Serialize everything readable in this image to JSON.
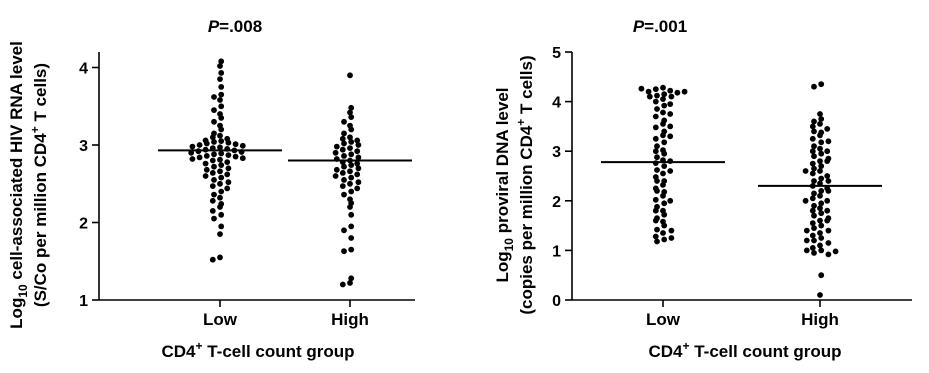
{
  "chart_data": [
    {
      "type": "scatter",
      "p_label": "P",
      "p_value": "=.008",
      "xlabel_main": "CD4",
      "xlabel_sup": "+",
      "xlabel_rest": " T-cell count group",
      "ylabel_line1": {
        "log": "Log",
        "sub": "10",
        "rest": " cell-associated HIV RNA level"
      },
      "ylabel_line2": {
        "pre": "(S/Co per million CD4",
        "sup": "+",
        "post": " T cells)"
      },
      "ylim": [
        1,
        4.2
      ],
      "yticks": [
        "1",
        "2",
        "3",
        "4"
      ],
      "categories": [
        "Low",
        "High"
      ],
      "series": [
        {
          "mean": 2.93,
          "values": [
            4.08,
            4.02,
            3.93,
            3.85,
            3.75,
            3.65,
            3.62,
            3.58,
            3.5,
            3.45,
            3.4,
            3.35,
            3.3,
            3.25,
            3.2,
            3.15,
            3.12,
            3.1,
            3.08,
            3.06,
            3.05,
            3.04,
            3.03,
            3.02,
            3.01,
            3.0,
            2.99,
            2.98,
            2.97,
            2.96,
            2.95,
            2.94,
            2.93,
            2.92,
            2.91,
            2.9,
            2.89,
            2.88,
            2.87,
            2.86,
            2.85,
            2.84,
            2.83,
            2.82,
            2.81,
            2.8,
            2.78,
            2.76,
            2.74,
            2.72,
            2.7,
            2.68,
            2.66,
            2.64,
            2.62,
            2.6,
            2.58,
            2.55,
            2.52,
            2.5,
            2.47,
            2.44,
            2.4,
            2.36,
            2.32,
            2.28,
            2.24,
            2.2,
            2.15,
            2.1,
            2.05,
            1.95,
            1.85,
            1.55,
            1.52
          ]
        },
        {
          "mean": 2.8,
          "values": [
            3.9,
            3.48,
            3.42,
            3.36,
            3.3,
            3.25,
            3.2,
            3.15,
            3.1,
            3.08,
            3.06,
            3.04,
            3.02,
            3.0,
            2.98,
            2.96,
            2.94,
            2.92,
            2.9,
            2.88,
            2.86,
            2.84,
            2.82,
            2.8,
            2.78,
            2.76,
            2.74,
            2.72,
            2.7,
            2.68,
            2.66,
            2.64,
            2.62,
            2.6,
            2.58,
            2.55,
            2.52,
            2.5,
            2.47,
            2.44,
            2.4,
            2.36,
            2.3,
            2.25,
            2.2,
            2.1,
            1.95,
            1.9,
            1.8,
            1.65,
            1.63,
            1.28,
            1.22,
            1.2
          ]
        }
      ]
    },
    {
      "type": "scatter",
      "p_label": "P",
      "p_value": "=.001",
      "xlabel_main": "CD4",
      "xlabel_sup": "+",
      "xlabel_rest": " T-cell count group",
      "ylabel_line1": {
        "log": "Log",
        "sub": "10",
        "rest": " proviral DNA level"
      },
      "ylabel_line2": {
        "pre": "(copies per million CD4",
        "sup": "+",
        "post": " T cells)"
      },
      "ylim": [
        0,
        5
      ],
      "yticks": [
        "0",
        "1",
        "2",
        "3",
        "4",
        "5"
      ],
      "categories": [
        "Low",
        "High"
      ],
      "series": [
        {
          "mean": 2.78,
          "values": [
            4.28,
            4.25,
            4.22,
            4.2,
            4.18,
            4.15,
            4.12,
            4.1,
            4.05,
            4.0,
            3.92,
            3.85,
            3.78,
            3.7,
            3.62,
            3.55,
            3.48,
            3.4,
            3.32,
            3.25,
            3.18,
            3.1,
            3.02,
            2.95,
            2.88,
            2.82,
            2.76,
            2.7,
            2.62,
            2.55,
            2.48,
            2.4,
            2.32,
            2.25,
            2.18,
            2.1,
            2.02,
            1.95,
            1.88,
            1.8,
            1.72,
            1.65,
            1.58,
            1.5,
            1.42,
            1.35,
            1.28,
            1.22,
            1.18,
            4.26,
            4.2,
            4.1,
            3.95,
            3.75,
            3.5,
            3.3,
            3.0,
            2.8,
            2.6,
            2.4,
            2.2,
            2.0,
            1.8,
            1.6,
            1.4,
            1.25
          ]
        },
        {
          "mean": 2.3,
          "values": [
            4.35,
            4.3,
            3.75,
            3.65,
            3.55,
            3.5,
            3.45,
            3.38,
            3.32,
            3.25,
            3.18,
            3.1,
            3.05,
            3.0,
            2.95,
            2.9,
            2.85,
            2.8,
            2.75,
            2.7,
            2.65,
            2.6,
            2.55,
            2.5,
            2.45,
            2.4,
            2.35,
            2.3,
            2.25,
            2.2,
            2.15,
            2.1,
            2.05,
            2.0,
            1.95,
            1.9,
            1.85,
            1.8,
            1.75,
            1.7,
            1.65,
            1.6,
            1.55,
            1.5,
            1.45,
            1.4,
            1.35,
            1.3,
            1.25,
            1.2,
            1.15,
            1.1,
            1.05,
            1.0,
            0.95,
            0.92,
            0.5,
            0.1,
            3.6,
            3.4,
            3.2,
            3.0,
            2.8,
            2.6,
            2.4,
            2.2,
            2.0,
            1.8,
            1.6,
            1.4,
            1.2,
            1.0,
            0.98
          ]
        }
      ]
    }
  ]
}
